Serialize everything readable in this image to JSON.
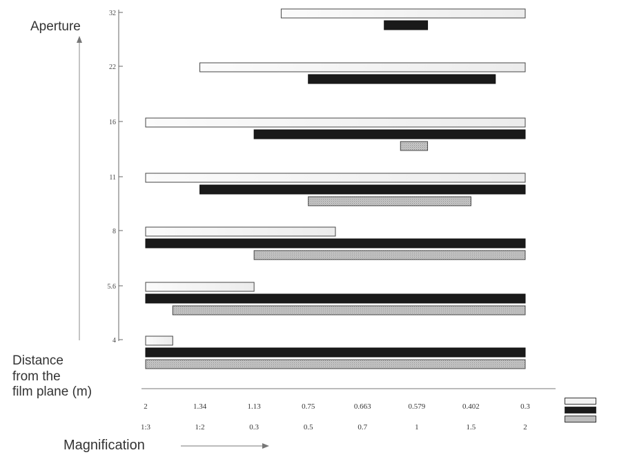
{
  "chart_data": {
    "type": "bar",
    "orientation": "horizontal",
    "y_axis": {
      "title": "Aperture",
      "categories": [
        "32",
        "22",
        "16",
        "11",
        "8",
        "5.6",
        "4"
      ]
    },
    "x_axis": {
      "distance_title": [
        "Distance",
        "from the",
        "film plane (m)"
      ],
      "magnification_title": "Magnification",
      "distance_ticks": [
        "2",
        "1.34",
        "1.13",
        "0.75",
        "0.663",
        "0.579",
        "0.402",
        "0.3"
      ],
      "magnification_ticks": [
        "1:3",
        "1:2",
        "0.3",
        "0.5",
        "0.7",
        "1",
        "1.5",
        "2"
      ]
    },
    "series": [
      {
        "name": "",
        "color": "#f2f2f2",
        "style": "outline"
      },
      {
        "name": "",
        "color": "#1a1a1a",
        "style": "solid"
      },
      {
        "name": "",
        "color": "#bdbdbd",
        "style": "stippled"
      }
    ],
    "bars": [
      {
        "aperture": "32",
        "series": 0,
        "start": 2.5,
        "end": 7.0
      },
      {
        "aperture": "32",
        "series": 1,
        "start": 4.4,
        "end": 5.2
      },
      {
        "aperture": "22",
        "series": 0,
        "start": 1.0,
        "end": 7.0
      },
      {
        "aperture": "22",
        "series": 1,
        "start": 3.0,
        "end": 6.45
      },
      {
        "aperture": "16",
        "series": 0,
        "start": 0.0,
        "end": 7.0
      },
      {
        "aperture": "16",
        "series": 1,
        "start": 2.0,
        "end": 7.0
      },
      {
        "aperture": "16",
        "series": 2,
        "start": 4.7,
        "end": 5.2
      },
      {
        "aperture": "11",
        "series": 0,
        "start": 0.0,
        "end": 7.0
      },
      {
        "aperture": "11",
        "series": 1,
        "start": 1.0,
        "end": 7.0
      },
      {
        "aperture": "11",
        "series": 2,
        "start": 3.0,
        "end": 6.0
      },
      {
        "aperture": "8",
        "series": 0,
        "start": 0.0,
        "end": 3.5
      },
      {
        "aperture": "8",
        "series": 1,
        "start": 0.0,
        "end": 7.0
      },
      {
        "aperture": "8",
        "series": 2,
        "start": 2.0,
        "end": 7.0
      },
      {
        "aperture": "5.6",
        "series": 0,
        "start": 0.0,
        "end": 2.0
      },
      {
        "aperture": "5.6",
        "series": 1,
        "start": 0.0,
        "end": 7.0
      },
      {
        "aperture": "5.6",
        "series": 2,
        "start": 0.5,
        "end": 7.0
      },
      {
        "aperture": "4",
        "series": 0,
        "start": 0.0,
        "end": 0.5
      },
      {
        "aperture": "4",
        "series": 1,
        "start": 0.0,
        "end": 7.0
      },
      {
        "aperture": "4",
        "series": 2,
        "start": 0.0,
        "end": 7.0
      }
    ]
  }
}
